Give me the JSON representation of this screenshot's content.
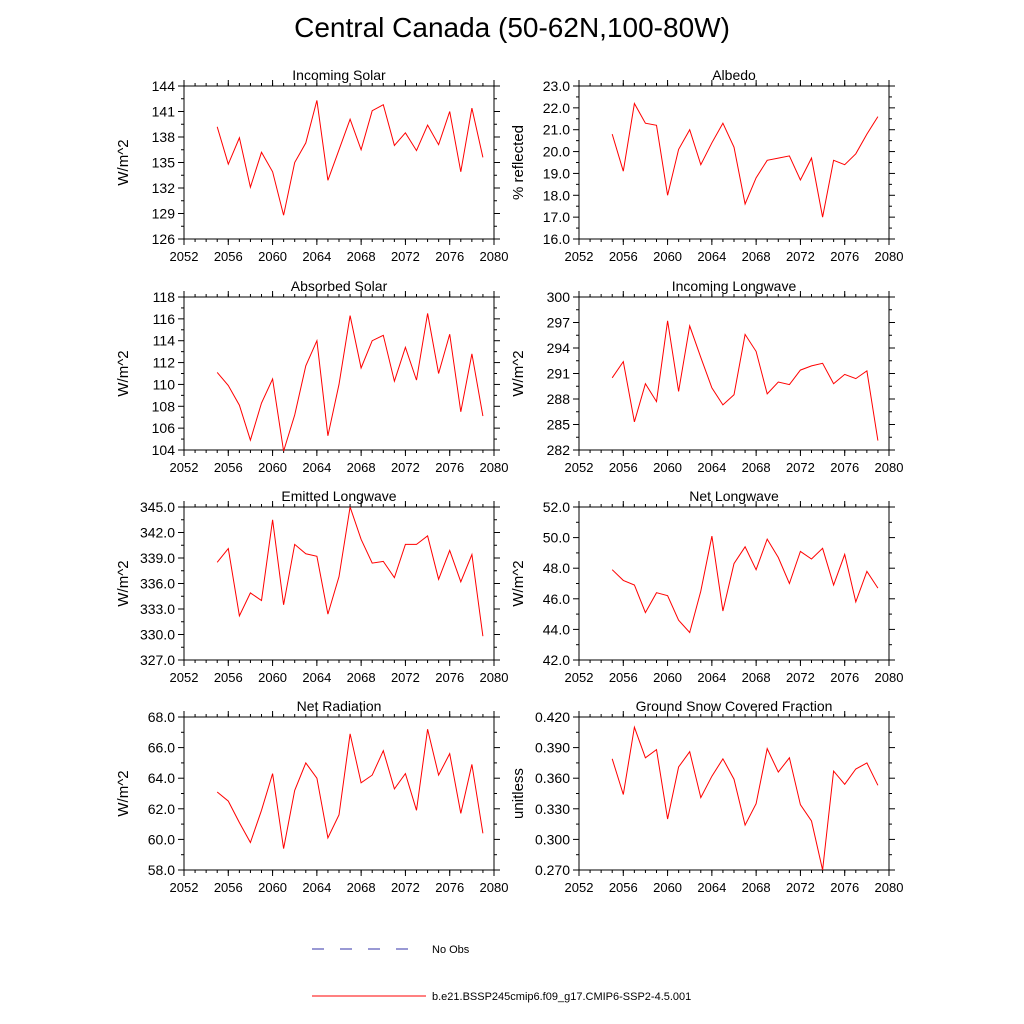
{
  "title": "Central Canada (50-62N,100-80W)",
  "legend": {
    "entries": [
      {
        "label": "No Obs",
        "color": "#3333aa",
        "style": "dashed"
      },
      {
        "label": "b.e21.BSSP245cmip6.f09_g17.CMIP6-SSP2-4.5.001",
        "color": "#ff0000",
        "style": "solid"
      }
    ]
  },
  "chart_data": [
    {
      "type": "line",
      "title": "Incoming Solar",
      "ylabel": "W/m^2",
      "xlim": [
        2052,
        2080
      ],
      "ylim": [
        126,
        144
      ],
      "xticks": [
        "2052",
        "2056",
        "2060",
        "2064",
        "2068",
        "2072",
        "2076",
        "2080"
      ],
      "yticks": [
        "126",
        "129",
        "132",
        "135",
        "138",
        "141",
        "144"
      ],
      "x": [
        2055,
        2056,
        2057,
        2058,
        2059,
        2060,
        2061,
        2062,
        2063,
        2064,
        2065,
        2066,
        2067,
        2068,
        2069,
        2070,
        2071,
        2072,
        2073,
        2074,
        2075,
        2076,
        2077,
        2078,
        2079
      ],
      "series": [
        {
          "color": "#ff0000",
          "values": [
            139.2,
            134.8,
            137.9,
            132.1,
            136.2,
            133.9,
            128.8,
            135.0,
            137.3,
            142.3,
            132.9,
            136.5,
            140.1,
            136.5,
            141.1,
            141.8,
            137.0,
            138.5,
            136.4,
            139.4,
            137.1,
            141.0,
            133.9,
            141.4,
            135.6
          ]
        }
      ]
    },
    {
      "type": "line",
      "title": "Albedo",
      "ylabel": "% reflected",
      "xlim": [
        2052,
        2080
      ],
      "ylim": [
        16.0,
        23.0
      ],
      "xticks": [
        "2052",
        "2056",
        "2060",
        "2064",
        "2068",
        "2072",
        "2076",
        "2080"
      ],
      "yticks": [
        "16.0",
        "17.0",
        "18.0",
        "19.0",
        "20.0",
        "21.0",
        "22.0",
        "23.0"
      ],
      "x": [
        2055,
        2056,
        2057,
        2058,
        2059,
        2060,
        2061,
        2062,
        2063,
        2064,
        2065,
        2066,
        2067,
        2068,
        2069,
        2070,
        2071,
        2072,
        2073,
        2074,
        2075,
        2076,
        2077,
        2078,
        2079
      ],
      "series": [
        {
          "color": "#ff0000",
          "values": [
            20.8,
            19.1,
            22.2,
            21.3,
            21.2,
            18.0,
            20.1,
            21.0,
            19.4,
            20.4,
            21.3,
            20.2,
            17.6,
            18.8,
            19.6,
            19.7,
            19.8,
            18.7,
            19.7,
            17.0,
            19.6,
            19.4,
            19.9,
            20.8,
            21.6
          ]
        }
      ]
    },
    {
      "type": "line",
      "title": "Absorbed Solar",
      "ylabel": "W/m^2",
      "xlim": [
        2052,
        2080
      ],
      "ylim": [
        104,
        118
      ],
      "xticks": [
        "2052",
        "2056",
        "2060",
        "2064",
        "2068",
        "2072",
        "2076",
        "2080"
      ],
      "yticks": [
        "104",
        "106",
        "108",
        "110",
        "112",
        "114",
        "116",
        "118"
      ],
      "x": [
        2055,
        2056,
        2057,
        2058,
        2059,
        2060,
        2061,
        2062,
        2063,
        2064,
        2065,
        2066,
        2067,
        2068,
        2069,
        2070,
        2071,
        2072,
        2073,
        2074,
        2075,
        2076,
        2077,
        2078,
        2079
      ],
      "series": [
        {
          "color": "#ff0000",
          "values": [
            111.1,
            109.9,
            108.1,
            104.9,
            108.3,
            110.5,
            103.9,
            107.2,
            111.7,
            114.0,
            105.3,
            110.0,
            116.3,
            111.5,
            114.0,
            114.5,
            110.3,
            113.4,
            110.4,
            116.5,
            111.0,
            114.6,
            107.5,
            112.8,
            107.1
          ]
        }
      ]
    },
    {
      "type": "line",
      "title": "Incoming Longwave",
      "ylabel": "W/m^2",
      "xlim": [
        2052,
        2080
      ],
      "ylim": [
        282,
        300
      ],
      "xticks": [
        "2052",
        "2056",
        "2060",
        "2064",
        "2068",
        "2072",
        "2076",
        "2080"
      ],
      "yticks": [
        "282",
        "285",
        "288",
        "291",
        "294",
        "297",
        "300"
      ],
      "x": [
        2055,
        2056,
        2057,
        2058,
        2059,
        2060,
        2061,
        2062,
        2063,
        2064,
        2065,
        2066,
        2067,
        2068,
        2069,
        2070,
        2071,
        2072,
        2073,
        2074,
        2075,
        2076,
        2077,
        2078,
        2079
      ],
      "series": [
        {
          "color": "#ff0000",
          "values": [
            290.5,
            292.4,
            285.3,
            289.8,
            287.7,
            297.2,
            288.9,
            296.6,
            292.9,
            289.3,
            287.3,
            288.5,
            295.6,
            293.6,
            288.6,
            290.0,
            289.7,
            291.4,
            291.9,
            292.2,
            289.8,
            290.9,
            290.4,
            291.3,
            283.1
          ]
        }
      ]
    },
    {
      "type": "line",
      "title": "Emitted Longwave",
      "ylabel": "W/m^2",
      "xlim": [
        2052,
        2080
      ],
      "ylim": [
        327.0,
        345.0
      ],
      "xticks": [
        "2052",
        "2056",
        "2060",
        "2064",
        "2068",
        "2072",
        "2076",
        "2080"
      ],
      "yticks": [
        "327.0",
        "330.0",
        "333.0",
        "336.0",
        "339.0",
        "342.0",
        "345.0"
      ],
      "x": [
        2055,
        2056,
        2057,
        2058,
        2059,
        2060,
        2061,
        2062,
        2063,
        2064,
        2065,
        2066,
        2067,
        2068,
        2069,
        2070,
        2071,
        2072,
        2073,
        2074,
        2075,
        2076,
        2077,
        2078,
        2079
      ],
      "series": [
        {
          "color": "#ff0000",
          "values": [
            338.5,
            340.1,
            332.2,
            334.9,
            334.0,
            343.5,
            333.5,
            340.6,
            339.5,
            339.2,
            332.4,
            336.8,
            345.0,
            341.2,
            338.4,
            338.6,
            336.7,
            340.6,
            340.6,
            341.6,
            336.5,
            339.9,
            336.2,
            339.4,
            329.8
          ]
        }
      ]
    },
    {
      "type": "line",
      "title": "Net Longwave",
      "ylabel": "W/m^2",
      "xlim": [
        2052,
        2080
      ],
      "ylim": [
        42.0,
        52.0
      ],
      "xticks": [
        "2052",
        "2056",
        "2060",
        "2064",
        "2068",
        "2072",
        "2076",
        "2080"
      ],
      "yticks": [
        "42.0",
        "44.0",
        "46.0",
        "48.0",
        "50.0",
        "52.0"
      ],
      "x": [
        2055,
        2056,
        2057,
        2058,
        2059,
        2060,
        2061,
        2062,
        2063,
        2064,
        2065,
        2066,
        2067,
        2068,
        2069,
        2070,
        2071,
        2072,
        2073,
        2074,
        2075,
        2076,
        2077,
        2078,
        2079
      ],
      "series": [
        {
          "color": "#ff0000",
          "values": [
            47.9,
            47.2,
            46.9,
            45.1,
            46.4,
            46.2,
            44.6,
            43.8,
            46.5,
            50.1,
            45.2,
            48.3,
            49.4,
            47.9,
            49.9,
            48.7,
            47.0,
            49.1,
            48.6,
            49.3,
            46.9,
            48.9,
            45.8,
            47.8,
            46.7
          ]
        }
      ]
    },
    {
      "type": "line",
      "title": "Net Radiation",
      "ylabel": "W/m^2",
      "xlim": [
        2052,
        2080
      ],
      "ylim": [
        58.0,
        68.0
      ],
      "xticks": [
        "2052",
        "2056",
        "2060",
        "2064",
        "2068",
        "2072",
        "2076",
        "2080"
      ],
      "yticks": [
        "58.0",
        "60.0",
        "62.0",
        "64.0",
        "66.0",
        "68.0"
      ],
      "x": [
        2055,
        2056,
        2057,
        2058,
        2059,
        2060,
        2061,
        2062,
        2063,
        2064,
        2065,
        2066,
        2067,
        2068,
        2069,
        2070,
        2071,
        2072,
        2073,
        2074,
        2075,
        2076,
        2077,
        2078,
        2079
      ],
      "series": [
        {
          "color": "#ff0000",
          "values": [
            63.1,
            62.5,
            61.1,
            59.8,
            61.9,
            64.3,
            59.4,
            63.2,
            65.0,
            64.0,
            60.1,
            61.6,
            66.9,
            63.7,
            64.2,
            65.8,
            63.3,
            64.3,
            61.9,
            67.2,
            64.2,
            65.6,
            61.7,
            64.9,
            60.4
          ]
        }
      ]
    },
    {
      "type": "line",
      "title": "Ground Snow Covered Fraction",
      "ylabel": "unitless",
      "xlim": [
        2052,
        2080
      ],
      "ylim": [
        0.27,
        0.42
      ],
      "xticks": [
        "2052",
        "2056",
        "2060",
        "2064",
        "2068",
        "2072",
        "2076",
        "2080"
      ],
      "yticks": [
        "0.270",
        "0.300",
        "0.330",
        "0.360",
        "0.390",
        "0.420"
      ],
      "x": [
        2055,
        2056,
        2057,
        2058,
        2059,
        2060,
        2061,
        2062,
        2063,
        2064,
        2065,
        2066,
        2067,
        2068,
        2069,
        2070,
        2071,
        2072,
        2073,
        2074,
        2075,
        2076,
        2077,
        2078,
        2079
      ],
      "series": [
        {
          "color": "#ff0000",
          "values": [
            0.379,
            0.344,
            0.41,
            0.38,
            0.388,
            0.32,
            0.371,
            0.386,
            0.341,
            0.362,
            0.379,
            0.359,
            0.314,
            0.335,
            0.389,
            0.366,
            0.38,
            0.334,
            0.318,
            0.27,
            0.367,
            0.354,
            0.369,
            0.375,
            0.353
          ]
        }
      ]
    }
  ]
}
